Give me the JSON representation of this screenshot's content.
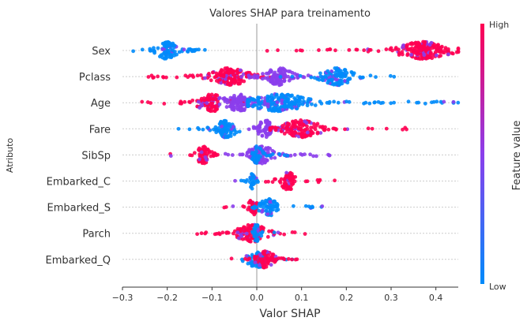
{
  "chart_data": {
    "type": "scatter",
    "title": "Valores SHAP para treinamento",
    "xlabel": "Valor SHAP",
    "ylabel": "Atributo",
    "xlim": [
      -0.3,
      0.45
    ],
    "xticks": [
      "−0.3",
      "−0.2",
      "−0.1",
      "0.0",
      "0.1",
      "0.2",
      "0.3",
      "0.4"
    ],
    "xtick_values": [
      -0.3,
      -0.2,
      -0.1,
      0.0,
      0.1,
      0.2,
      0.3,
      0.4
    ],
    "grid": "horizontal",
    "features": [
      "Sex",
      "Pclass",
      "Age",
      "Fare",
      "SibSp",
      "Embarked_C",
      "Embarked_S",
      "Parch",
      "Embarked_Q"
    ],
    "colorbar": {
      "label": "Feature value",
      "high_label": "High",
      "low_label": "Low",
      "low_color": "#008bfb",
      "mid_color": "#8b3eec",
      "high_color": "#ff0052"
    },
    "series": [
      {
        "feature": "Sex",
        "clusters": [
          {
            "x": [
              -0.29,
              -0.1
            ],
            "peak": -0.2,
            "color": "low"
          },
          {
            "x": [
              0.02,
              0.45
            ],
            "peak": 0.37,
            "color": "high"
          }
        ]
      },
      {
        "feature": "Pclass",
        "clusters": [
          {
            "x": [
              -0.25,
              0.07
            ],
            "peak": -0.06,
            "color": "high"
          },
          {
            "x": [
              -0.04,
              0.18
            ],
            "peak": 0.05,
            "color": "mid"
          },
          {
            "x": [
              0.05,
              0.31
            ],
            "peak": 0.18,
            "color": "low"
          }
        ]
      },
      {
        "feature": "Age",
        "clusters": [
          {
            "x": [
              -0.26,
              -0.02
            ],
            "peak": -0.1,
            "color": "high"
          },
          {
            "x": [
              -0.1,
              0.12
            ],
            "peak": -0.04,
            "color": "mid"
          },
          {
            "x": [
              -0.02,
              0.45
            ],
            "peak": 0.05,
            "color": "low"
          }
        ]
      },
      {
        "feature": "Fare",
        "clusters": [
          {
            "x": [
              -0.21,
              -0.02
            ],
            "peak": -0.07,
            "color": "low"
          },
          {
            "x": [
              -0.04,
              0.1
            ],
            "peak": 0.02,
            "color": "mid"
          },
          {
            "x": [
              0.03,
              0.35
            ],
            "peak": 0.1,
            "color": "high"
          }
        ]
      },
      {
        "feature": "SibSp",
        "clusters": [
          {
            "x": [
              -0.21,
              -0.08
            ],
            "peak": -0.12,
            "color": "high"
          },
          {
            "x": [
              -0.07,
              0.17
            ],
            "peak": 0.01,
            "color": "mid"
          },
          {
            "x": [
              -0.01,
              0.08
            ],
            "peak": 0.0,
            "color": "low"
          }
        ]
      },
      {
        "feature": "Embarked_C",
        "clusters": [
          {
            "x": [
              -0.05,
              0.01
            ],
            "peak": -0.01,
            "color": "low"
          },
          {
            "x": [
              0.02,
              0.18
            ],
            "peak": 0.07,
            "color": "high"
          }
        ]
      },
      {
        "feature": "Embarked_S",
        "clusters": [
          {
            "x": [
              -0.08,
              0.0
            ],
            "peak": -0.01,
            "color": "high"
          },
          {
            "x": [
              -0.01,
              0.16
            ],
            "peak": 0.03,
            "color": "low"
          }
        ]
      },
      {
        "feature": "Parch",
        "clusters": [
          {
            "x": [
              -0.14,
              0.12
            ],
            "peak": -0.01,
            "color": "high"
          },
          {
            "x": [
              -0.03,
              0.04
            ],
            "peak": 0.0,
            "color": "low"
          }
        ]
      },
      {
        "feature": "Embarked_Q",
        "clusters": [
          {
            "x": [
              -0.07,
              0.09
            ],
            "peak": 0.0,
            "color": "low"
          },
          {
            "x": [
              -0.06,
              0.09
            ],
            "peak": 0.02,
            "color": "high"
          }
        ]
      }
    ]
  }
}
